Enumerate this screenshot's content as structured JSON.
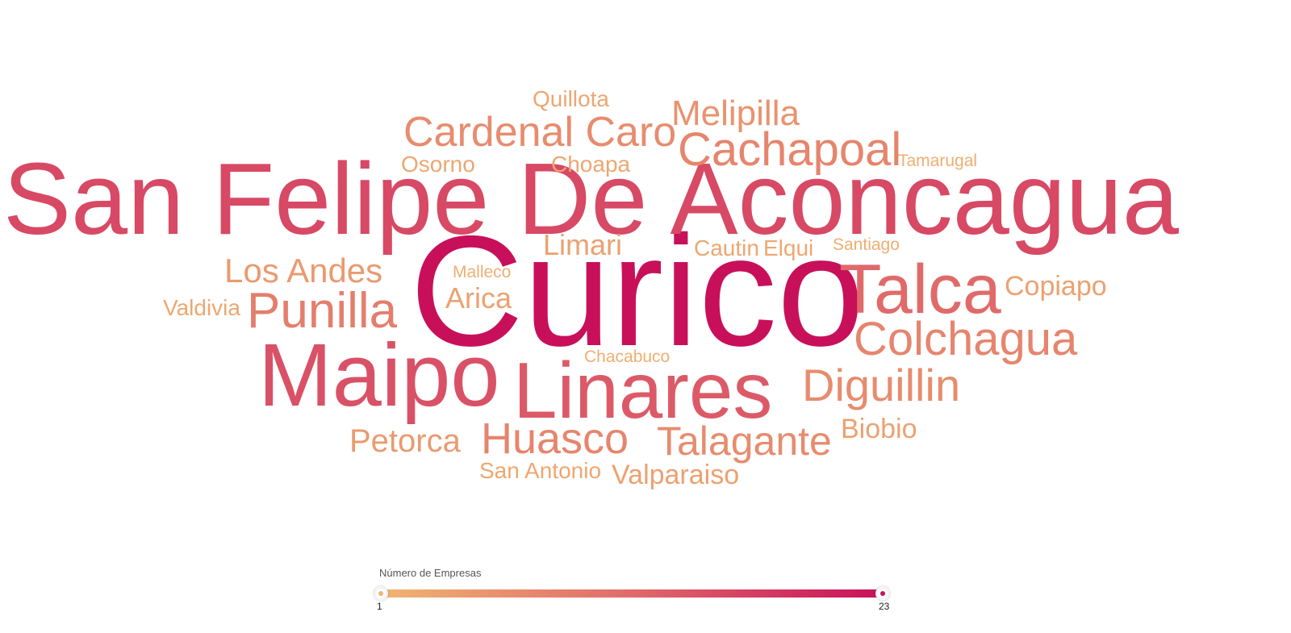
{
  "chart_data": {
    "type": "wordcloud",
    "words": [
      {
        "text": "Curico",
        "value": 23
      },
      {
        "text": "San Felipe De Aconcagua",
        "value": 16
      },
      {
        "text": "Maipo",
        "value": 15
      },
      {
        "text": "Linares",
        "value": 14
      },
      {
        "text": "Talca",
        "value": 12
      },
      {
        "text": "Punilla",
        "value": 9
      },
      {
        "text": "Colchagua",
        "value": 8
      },
      {
        "text": "Cachapoal",
        "value": 8
      },
      {
        "text": "Huasco",
        "value": 8
      },
      {
        "text": "Cardenal Caro",
        "value": 7
      },
      {
        "text": "Diguillin",
        "value": 7
      },
      {
        "text": "Talagante",
        "value": 7
      },
      {
        "text": "Melipilla",
        "value": 6
      },
      {
        "text": "Los Andes",
        "value": 5
      },
      {
        "text": "Petorca",
        "value": 5
      },
      {
        "text": "Arica",
        "value": 4
      },
      {
        "text": "Limari",
        "value": 4
      },
      {
        "text": "Copiapo",
        "value": 4
      },
      {
        "text": "Valparaiso",
        "value": 4
      },
      {
        "text": "Biobio",
        "value": 4
      },
      {
        "text": "Quillota",
        "value": 3
      },
      {
        "text": "Osorno",
        "value": 3
      },
      {
        "text": "Choapa",
        "value": 3
      },
      {
        "text": "Cautin",
        "value": 3
      },
      {
        "text": "Elqui",
        "value": 3
      },
      {
        "text": "Valdivia",
        "value": 3
      },
      {
        "text": "San Antonio",
        "value": 3
      },
      {
        "text": "Malleco",
        "value": 2
      },
      {
        "text": "Chacabuco",
        "value": 2
      },
      {
        "text": "Santiago",
        "value": 2
      },
      {
        "text": "Tamarugal",
        "value": 2
      }
    ],
    "color_scale": {
      "low": "#f0b572",
      "mid": "#e06a6a",
      "high": "#c8105a"
    },
    "legend": {
      "title": "Número de Empresas",
      "min": "1",
      "max": "23",
      "placement": "bottom-center"
    }
  }
}
